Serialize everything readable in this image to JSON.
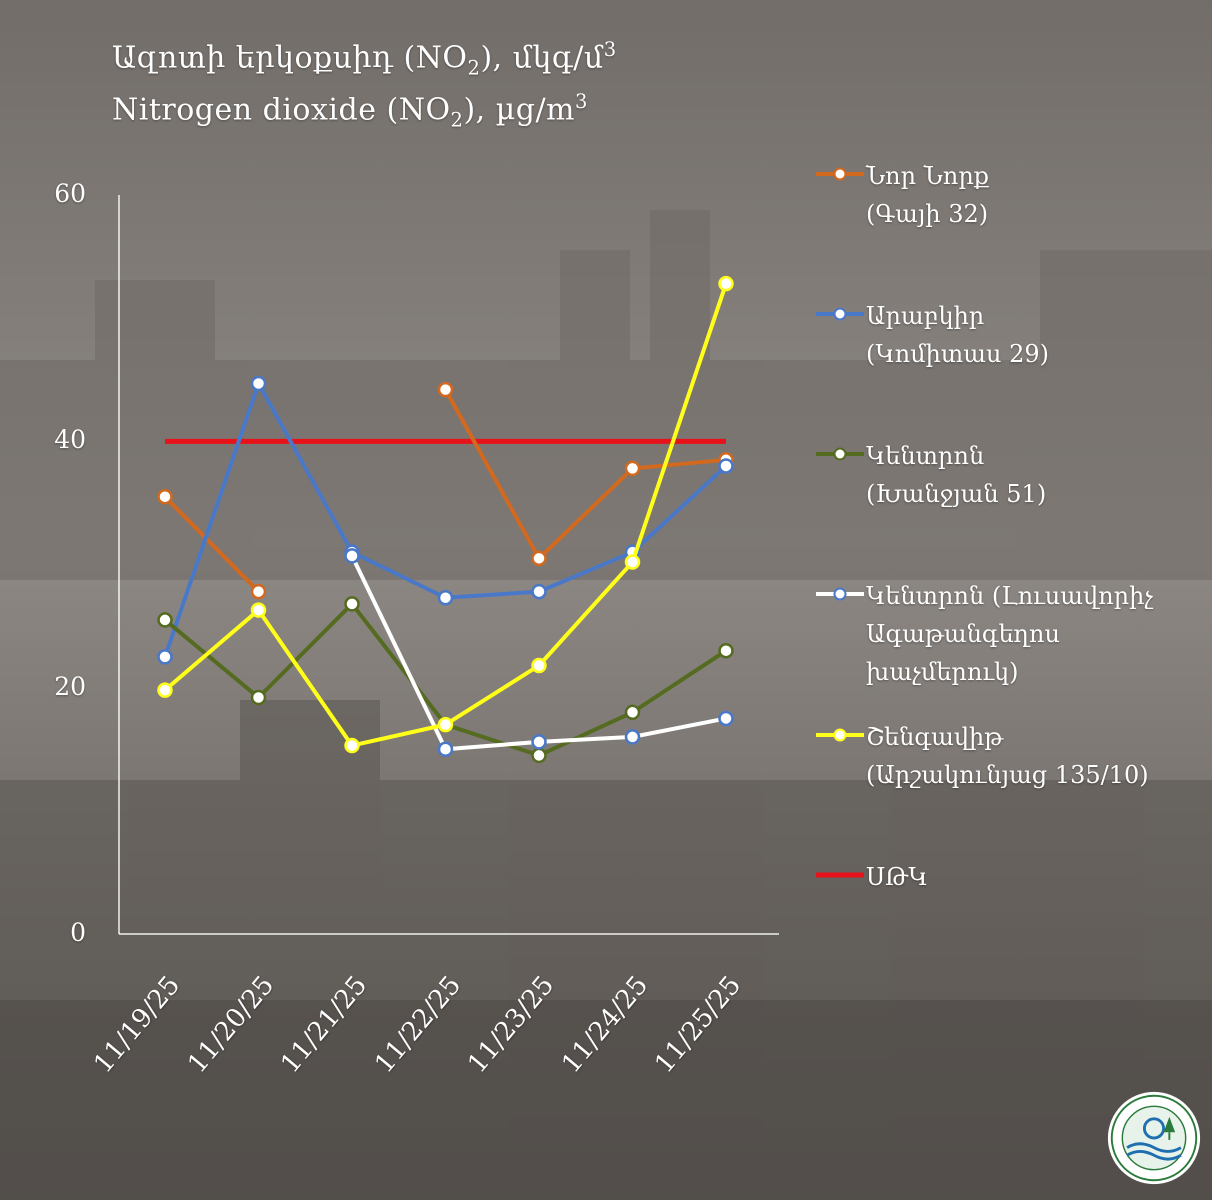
{
  "title": {
    "line1": {
      "pre": "Ազոտի  երկօքսիդ (NO",
      "sub": "2",
      "mid": "), մկգ/մ",
      "sup": "3"
    },
    "line2": {
      "pre": "Nitrogen  dioxide (NO",
      "sub": "2",
      "mid": "), µg/m",
      "sup": "3"
    }
  },
  "chart_data": {
    "type": "line",
    "categories": [
      "11/19/25",
      "11/20/25",
      "11/21/25",
      "11/22/25",
      "11/23/25",
      "11/24/25",
      "11/25/25"
    ],
    "ylim": [
      0,
      60
    ],
    "yticks": [
      "0",
      "20",
      "40",
      "60"
    ],
    "xlabel": "",
    "ylabel": "",
    "grid": false,
    "legend_position": "right",
    "series": [
      {
        "name": "Նոր Նորք",
        "name_line2": "(Գայի 32)",
        "color": "#d2691e",
        "values": [
          35.5,
          27.8,
          null,
          44.2,
          30.5,
          37.8,
          38.5
        ]
      },
      {
        "name": "Արաբկիր",
        "name_line2": "(Կոմիտաս 29)",
        "color": "#4a78c8",
        "values": [
          22.5,
          44.7,
          31.0,
          27.3,
          27.8,
          31.0,
          38.0
        ]
      },
      {
        "name": "Կենտրոն",
        "name_line2": "(Խանջյան 51)",
        "color": "#556b1f",
        "values": [
          25.5,
          19.2,
          26.8,
          17.0,
          14.5,
          18.0,
          23.0
        ]
      },
      {
        "name": "Կենտրոն (Լուսավորիչ",
        "name_line2": "Ագաթանգեղոս",
        "name_line3": "խաչմերուկ)",
        "color": "#ffffff",
        "values": [
          null,
          null,
          30.7,
          15.0,
          15.6,
          16.0,
          17.5
        ]
      },
      {
        "name": "Շենգավիթ",
        "name_line2": "(Արշակունյաց 135/10)",
        "color": "#ffff1a",
        "values": [
          19.8,
          26.3,
          15.3,
          17.0,
          21.8,
          30.2,
          52.8
        ]
      },
      {
        "name": "ՍԹԿ",
        "color": "#e8121a",
        "values": [
          40,
          40,
          40,
          40,
          40,
          40,
          40
        ]
      }
    ]
  }
}
